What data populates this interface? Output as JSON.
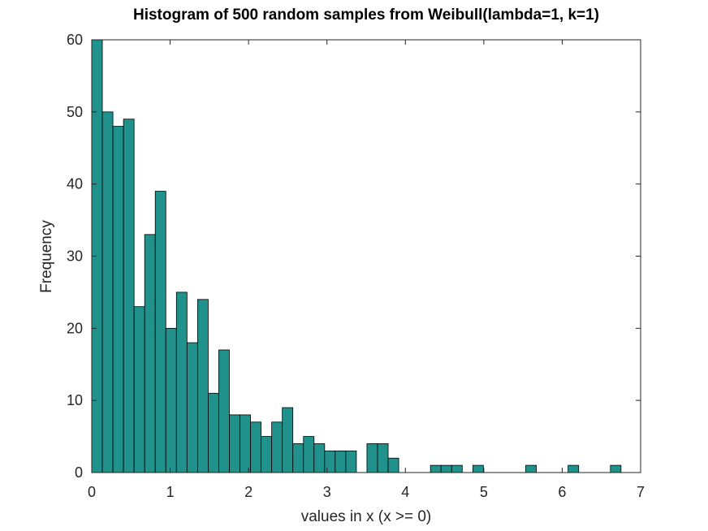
{
  "chart_data": {
    "type": "bar",
    "title": "Histogram of 500 random samples from Weibull(lambda=1, k=1)",
    "xlabel": "values in x (x >= 0)",
    "ylabel": "Frequency",
    "xlim": [
      0,
      7
    ],
    "ylim": [
      0,
      60
    ],
    "xticks": [
      "0",
      "1",
      "2",
      "3",
      "4",
      "5",
      "6",
      "7"
    ],
    "yticks": [
      "0",
      "10",
      "20",
      "30",
      "40",
      "50",
      "60"
    ],
    "grid": false,
    "bar_color": "#21918c",
    "bin_width": 0.135,
    "bin_start": 0,
    "values": [
      60,
      50,
      48,
      49,
      23,
      33,
      39,
      20,
      25,
      18,
      24,
      11,
      17,
      8,
      8,
      7,
      5,
      7,
      9,
      4,
      5,
      4,
      3,
      3,
      3,
      0,
      4,
      4,
      2,
      0,
      0,
      0,
      1,
      1,
      1,
      0,
      1,
      0,
      0,
      0,
      0,
      1,
      0,
      0,
      0,
      1,
      0,
      0,
      0,
      1
    ]
  }
}
